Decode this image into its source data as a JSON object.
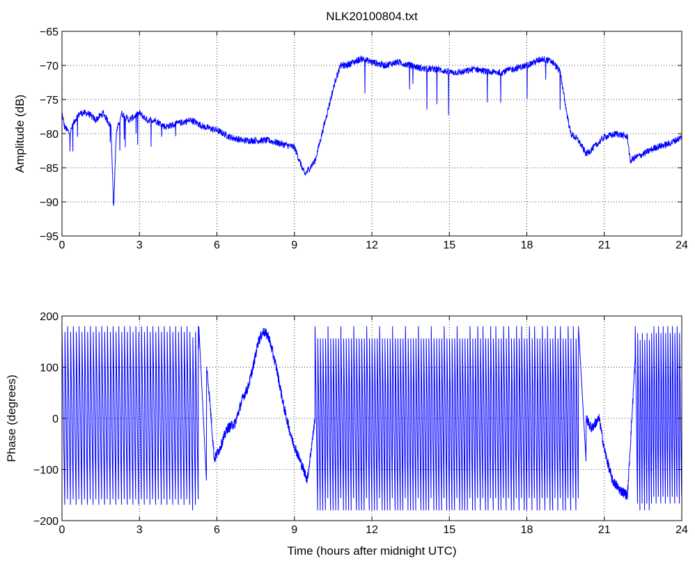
{
  "colors": {
    "series": "#0000ff",
    "axes": "#000000",
    "grid": "#000000",
    "background": "#ffffff"
  },
  "chart_data": [
    {
      "type": "line",
      "title": "NLK20100804.txt",
      "xlabel": "",
      "ylabel": "Amplitude (dB)",
      "xlim": [
        0,
        24
      ],
      "ylim": [
        -95,
        -65
      ],
      "xticks": [
        0,
        3,
        6,
        9,
        12,
        15,
        18,
        21,
        24
      ],
      "yticks": [
        -65,
        -70,
        -75,
        -80,
        -85,
        -90,
        -95
      ],
      "grid": true,
      "series": [
        {
          "x": [
            0,
            0.1,
            0.3,
            0.5,
            0.7,
            1.0,
            1.3,
            1.6,
            1.9,
            2.0,
            2.1,
            2.3,
            2.6,
            3.0,
            3.3,
            3.6,
            4.0,
            4.5,
            5.0,
            5.5,
            6.0,
            6.5,
            7.0,
            7.5,
            8.0,
            8.5,
            9.0,
            9.2,
            9.4,
            9.6,
            9.8,
            10.0,
            10.2,
            10.4,
            10.6,
            10.8,
            11.0,
            11.3,
            11.6,
            12.0,
            12.5,
            13.0,
            13.5,
            14.0,
            14.5,
            15.0,
            15.5,
            16.0,
            16.5,
            17.0,
            17.5,
            18.0,
            18.3,
            18.6,
            19.0,
            19.3,
            19.5,
            19.7,
            20.0,
            20.3,
            20.6,
            21.0,
            21.5,
            21.9,
            22.0,
            22.2,
            22.5,
            23.0,
            23.5,
            24.0
          ],
          "y": [
            -77,
            -79,
            -80,
            -78,
            -77,
            -77,
            -78,
            -77,
            -79,
            -91,
            -80,
            -77,
            -78,
            -77,
            -78,
            -78,
            -79,
            -78.5,
            -78,
            -79,
            -79.5,
            -80.5,
            -81,
            -81,
            -81,
            -81.5,
            -82,
            -84,
            -86,
            -85,
            -84,
            -81,
            -78,
            -75,
            -72,
            -70,
            -70,
            -69.5,
            -69,
            -69.5,
            -70,
            -69.5,
            -70,
            -70.5,
            -70.5,
            -71,
            -71,
            -70.5,
            -71,
            -71,
            -70.5,
            -70,
            -69.5,
            -69,
            -69.5,
            -71,
            -76,
            -80,
            -81,
            -83,
            -82,
            -80.5,
            -80,
            -80.5,
            -84,
            -83.5,
            -83,
            -82,
            -81.5,
            -80.5
          ]
        }
      ]
    },
    {
      "type": "line",
      "title": "",
      "xlabel": "Time (hours after midnight UTC)",
      "ylabel": "Phase (degrees)",
      "xlim": [
        0,
        24
      ],
      "ylim": [
        -200,
        200
      ],
      "xticks": [
        0,
        3,
        6,
        9,
        12,
        15,
        18,
        21,
        24
      ],
      "yticks": [
        200,
        100,
        0,
        -100,
        -200
      ],
      "grid": true,
      "series": [
        {
          "x": [
            0,
            5.3,
            5.5,
            5.7,
            5.9,
            6.1,
            6.4,
            6.7,
            7.0,
            7.2,
            7.4,
            7.6,
            7.8,
            8.0,
            8.3,
            8.6,
            8.9,
            9.2,
            9.5,
            9.8,
            20.0,
            20.2,
            20.5,
            20.8,
            21.0,
            21.3,
            21.6,
            21.9,
            22.2,
            24.0
          ],
          "y": [
            0,
            -100,
            150,
            50,
            -80,
            -60,
            -20,
            -10,
            40,
            60,
            100,
            150,
            170,
            160,
            100,
            20,
            -40,
            -80,
            -120,
            0,
            40,
            10,
            -20,
            0,
            -60,
            -120,
            -140,
            -150,
            120,
            0
          ],
          "wrap_from": [
            0,
            5.3,
            9.8,
            20.0,
            22.2
          ],
          "wrap_to": [
            5.3,
            5.6,
            20.0,
            20.3,
            24.0
          ],
          "wrap_period_hours": [
            0.11,
            0.35,
            0.1,
            0.4,
            0.09
          ]
        }
      ]
    }
  ]
}
